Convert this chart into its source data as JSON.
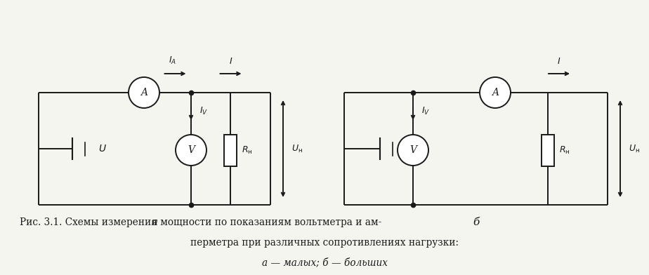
{
  "bg_color": "#f5f5f0",
  "line_color": "#1a1a1a",
  "fig_width": 9.24,
  "fig_height": 3.92,
  "caption_line1": "Рис. 3.1. Схемы измерения мощности по показаниям вольтметра и ам-",
  "caption_line2": "перметра при различных сопротивлениях нагрузки:",
  "caption_line3": "а — малых; б — больших",
  "label_a": "а",
  "label_b": "б",
  "circ_r": 0.22,
  "lw": 1.4,
  "r_width": 0.18,
  "r_height": 0.45
}
